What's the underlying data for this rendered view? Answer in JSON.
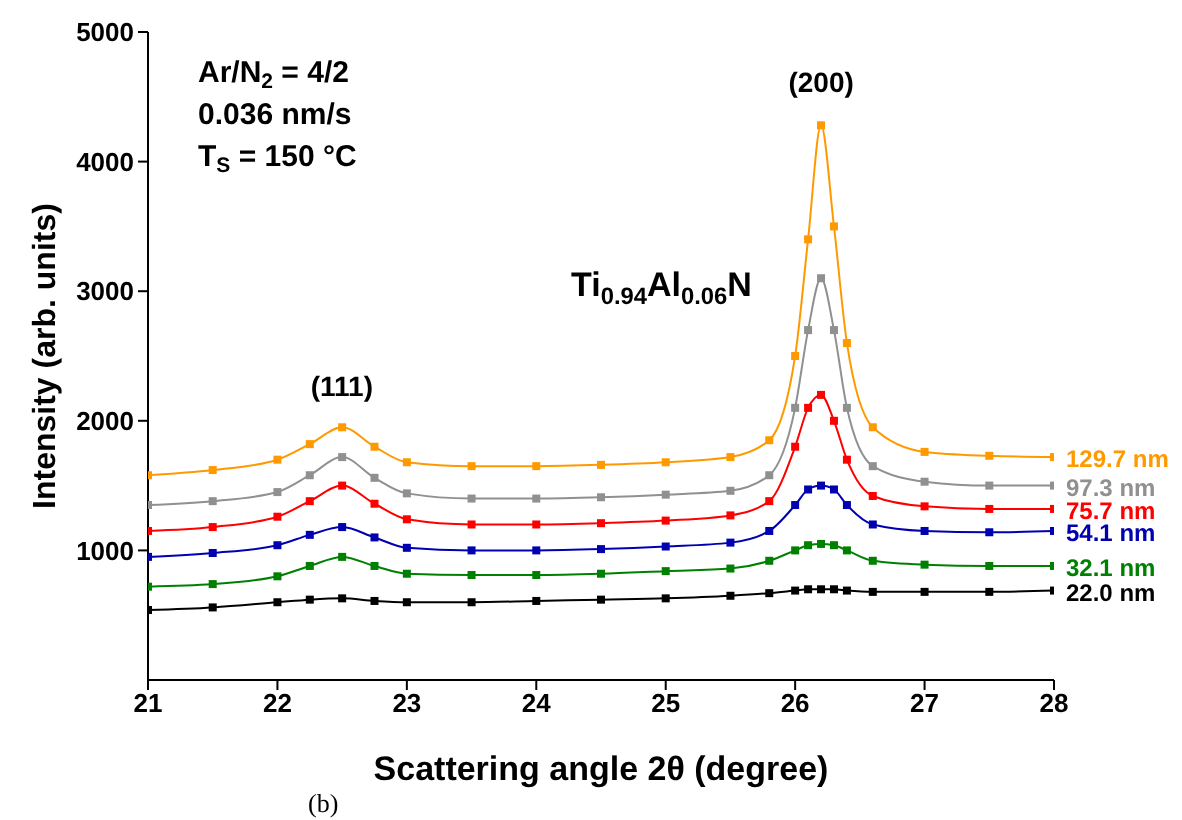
{
  "chart_data": {
    "type": "line",
    "xlabel": "Scattering angle 2θ (degree)",
    "ylabel": "Intensity (arb. units)",
    "x": [
      21,
      21.5,
      22,
      22.25,
      22.5,
      22.75,
      23,
      23.5,
      24,
      24.5,
      25,
      25.5,
      25.8,
      26,
      26.1,
      26.2,
      26.3,
      26.4,
      26.6,
      27,
      27.5,
      28
    ],
    "series": [
      {
        "name": "129.7 nm",
        "color": "#ff9900",
        "values": [
          1580,
          1620,
          1700,
          1820,
          1950,
          1800,
          1680,
          1650,
          1650,
          1660,
          1680,
          1720,
          1850,
          2500,
          3400,
          4280,
          3500,
          2600,
          1950,
          1760,
          1730,
          1720
        ]
      },
      {
        "name": "97.3 nm",
        "color": "#909090",
        "values": [
          1350,
          1380,
          1450,
          1580,
          1720,
          1560,
          1440,
          1400,
          1400,
          1410,
          1430,
          1460,
          1580,
          2100,
          2700,
          3100,
          2700,
          2100,
          1650,
          1530,
          1500,
          1500
        ]
      },
      {
        "name": "75.7 nm",
        "color": "#ff0000",
        "values": [
          1150,
          1180,
          1260,
          1380,
          1500,
          1360,
          1240,
          1200,
          1200,
          1210,
          1230,
          1270,
          1380,
          1800,
          2100,
          2200,
          2000,
          1700,
          1420,
          1340,
          1320,
          1320
        ]
      },
      {
        "name": "54.1 nm",
        "color": "#0000b0",
        "values": [
          950,
          980,
          1040,
          1120,
          1180,
          1100,
          1020,
          1000,
          1000,
          1010,
          1030,
          1060,
          1150,
          1350,
          1470,
          1500,
          1470,
          1350,
          1200,
          1150,
          1140,
          1150
        ]
      },
      {
        "name": "32.1 nm",
        "color": "#008000",
        "values": [
          720,
          740,
          800,
          880,
          950,
          880,
          820,
          810,
          810,
          820,
          840,
          860,
          920,
          1000,
          1040,
          1050,
          1040,
          1000,
          920,
          890,
          880,
          880
        ]
      },
      {
        "name": "22.0 nm",
        "color": "#000000",
        "values": [
          540,
          560,
          600,
          620,
          630,
          610,
          600,
          600,
          610,
          620,
          630,
          650,
          670,
          690,
          700,
          700,
          700,
          690,
          680,
          680,
          680,
          690
        ]
      }
    ],
    "xlim": [
      21,
      28
    ],
    "xticks": [
      21,
      22,
      23,
      24,
      25,
      26,
      27,
      28
    ],
    "ylim": [
      0,
      5000
    ],
    "yticks": [
      1000,
      2000,
      3000,
      4000,
      5000
    ],
    "marker": "square",
    "line_style": "solid",
    "grid": false,
    "legend": false,
    "annotations": [
      "Ar/N$_{2}$ = 4/2",
      "0.036 nm/s",
      "T$_{S}$ = 150 °C",
      "Ti$_{0.94}$Al$_{0.06}$N",
      "(111)",
      "(200)",
      "(b)"
    ]
  }
}
